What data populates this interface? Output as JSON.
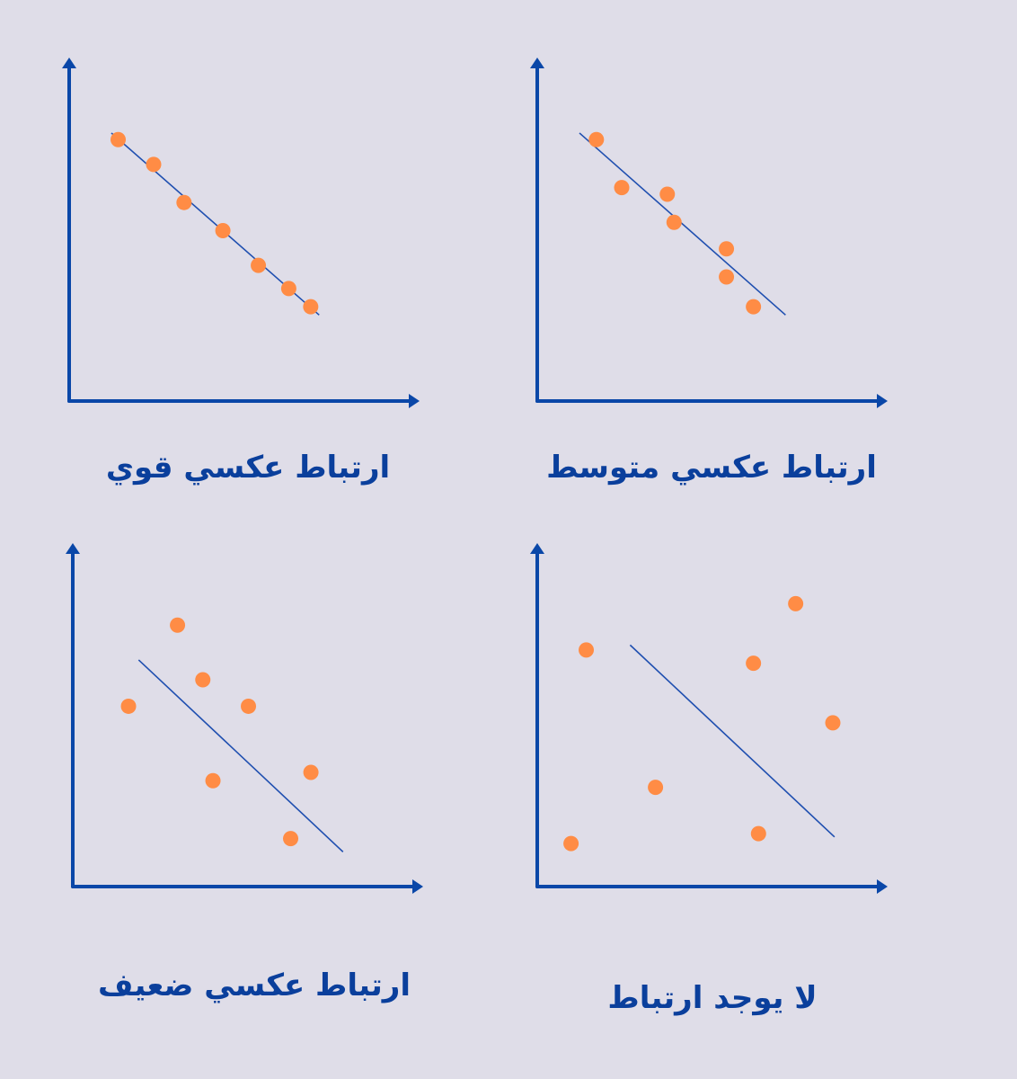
{
  "colors": {
    "axis": "#0a47a8",
    "point": "#ff8c45",
    "trend": "#1f4fb0",
    "caption": "#0a3f9c"
  },
  "chart_data": [
    {
      "type": "scatter",
      "title": "ارتباط عكسي قوي",
      "xlim": [
        0,
        10
      ],
      "ylim": [
        0,
        10
      ],
      "points": [
        {
          "x": 1.45,
          "y": 7.9
        },
        {
          "x": 2.5,
          "y": 7.15
        },
        {
          "x": 3.4,
          "y": 6.0
        },
        {
          "x": 4.55,
          "y": 5.15
        },
        {
          "x": 5.6,
          "y": 4.1
        },
        {
          "x": 6.5,
          "y": 3.4
        },
        {
          "x": 7.15,
          "y": 2.85
        }
      ],
      "trendline": [
        {
          "x": 1.25,
          "y": 8.1
        },
        {
          "x": 7.4,
          "y": 2.6
        }
      ]
    },
    {
      "type": "scatter",
      "title": "ارتباط عكسي متوسط",
      "xlim": [
        0,
        10
      ],
      "ylim": [
        0,
        10
      ],
      "points": [
        {
          "x": 1.75,
          "y": 7.9
        },
        {
          "x": 2.5,
          "y": 6.45
        },
        {
          "x": 3.85,
          "y": 6.25
        },
        {
          "x": 4.05,
          "y": 5.4
        },
        {
          "x": 5.6,
          "y": 3.75
        },
        {
          "x": 5.6,
          "y": 4.6
        },
        {
          "x": 6.4,
          "y": 2.85
        }
      ],
      "trendline": [
        {
          "x": 1.25,
          "y": 8.1
        },
        {
          "x": 7.35,
          "y": 2.6
        }
      ]
    },
    {
      "type": "scatter",
      "title": "ارتباط عكسي ضعيف",
      "xlim": [
        0,
        10
      ],
      "ylim": [
        0,
        10
      ],
      "points": [
        {
          "x": 1.65,
          "y": 5.45
        },
        {
          "x": 3.1,
          "y": 7.9
        },
        {
          "x": 3.85,
          "y": 6.25
        },
        {
          "x": 4.15,
          "y": 3.2
        },
        {
          "x": 5.2,
          "y": 5.45
        },
        {
          "x": 7.05,
          "y": 3.45
        },
        {
          "x": 6.45,
          "y": 1.45
        }
      ],
      "trendline": [
        {
          "x": 1.95,
          "y": 6.85
        },
        {
          "x": 8.0,
          "y": 1.05
        }
      ]
    },
    {
      "type": "scatter",
      "title": "لا يوجد ارتباط",
      "xlim": [
        0,
        10
      ],
      "ylim": [
        0,
        10
      ],
      "points": [
        {
          "x": 1.45,
          "y": 7.15
        },
        {
          "x": 1.0,
          "y": 1.3
        },
        {
          "x": 3.5,
          "y": 3.0
        },
        {
          "x": 6.4,
          "y": 6.75
        },
        {
          "x": 7.65,
          "y": 8.55
        },
        {
          "x": 6.55,
          "y": 1.6
        },
        {
          "x": 8.75,
          "y": 4.95
        }
      ],
      "trendline": [
        {
          "x": 2.75,
          "y": 7.3
        },
        {
          "x": 8.8,
          "y": 1.5
        }
      ]
    }
  ]
}
